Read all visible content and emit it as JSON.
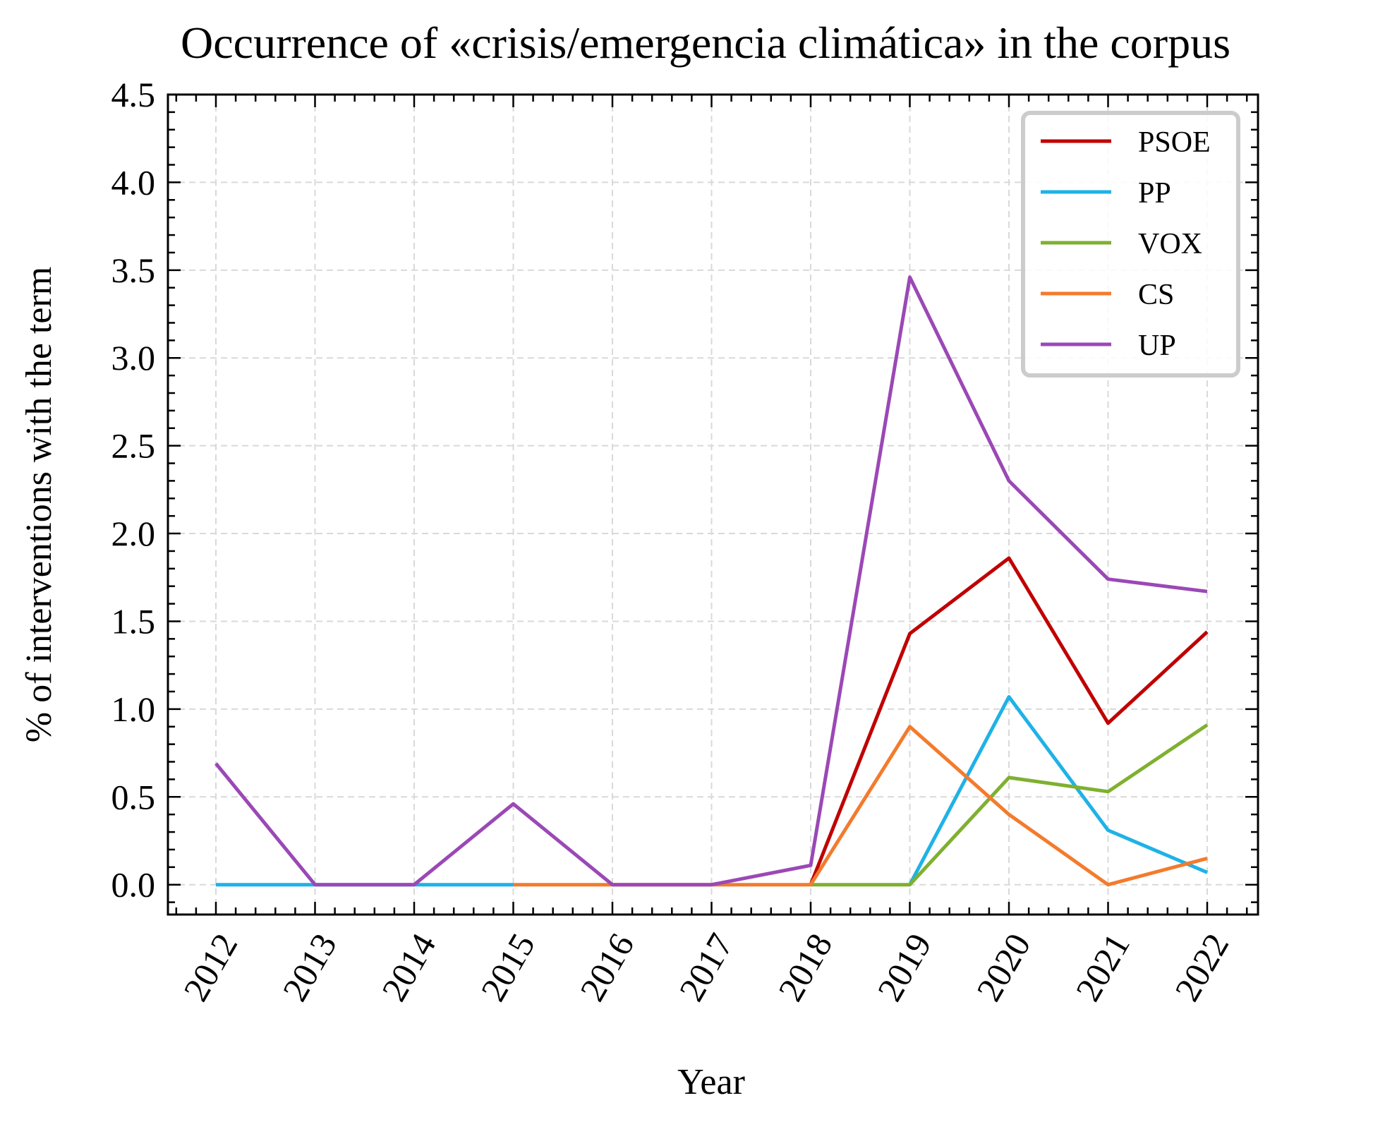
{
  "chart_data": {
    "type": "line",
    "title": "Occurrence of «crisis/emergencia climática» in the corpus",
    "xlabel": "Year",
    "ylabel": "% of interventions with the term",
    "x": [
      "2012",
      "2013",
      "2014",
      "2015",
      "2016",
      "2017",
      "2018",
      "2019",
      "2020",
      "2021",
      "2022"
    ],
    "ylim": [
      -0.17,
      4.5
    ],
    "yticks": [
      "0.0",
      "0.5",
      "1.0",
      "1.5",
      "2.0",
      "2.5",
      "3.0",
      "3.5",
      "4.0",
      "4.5"
    ],
    "grid": true,
    "legend_position": "top-right",
    "series": [
      {
        "name": "PSOE",
        "color": "#c00000",
        "values": [
          null,
          null,
          null,
          null,
          null,
          null,
          0.0,
          1.43,
          1.86,
          0.92,
          1.44
        ]
      },
      {
        "name": "PP",
        "color": "#1fb2e6",
        "values": [
          0.0,
          0.0,
          0.0,
          0.0,
          null,
          null,
          null,
          0.0,
          1.07,
          0.31,
          0.07
        ]
      },
      {
        "name": "VOX",
        "color": "#7fb030",
        "values": [
          null,
          null,
          null,
          null,
          null,
          null,
          0.0,
          0.0,
          0.61,
          0.53,
          0.91
        ]
      },
      {
        "name": "CS",
        "color": "#f37b2d",
        "values": [
          null,
          null,
          null,
          0.0,
          0.0,
          0.0,
          0.0,
          0.9,
          0.4,
          0.0,
          0.15
        ]
      },
      {
        "name": "UP",
        "color": "#9b48b6",
        "values": [
          0.69,
          0.0,
          0.0,
          0.46,
          0.0,
          0.0,
          0.11,
          3.46,
          2.3,
          1.74,
          1.67
        ]
      }
    ]
  }
}
